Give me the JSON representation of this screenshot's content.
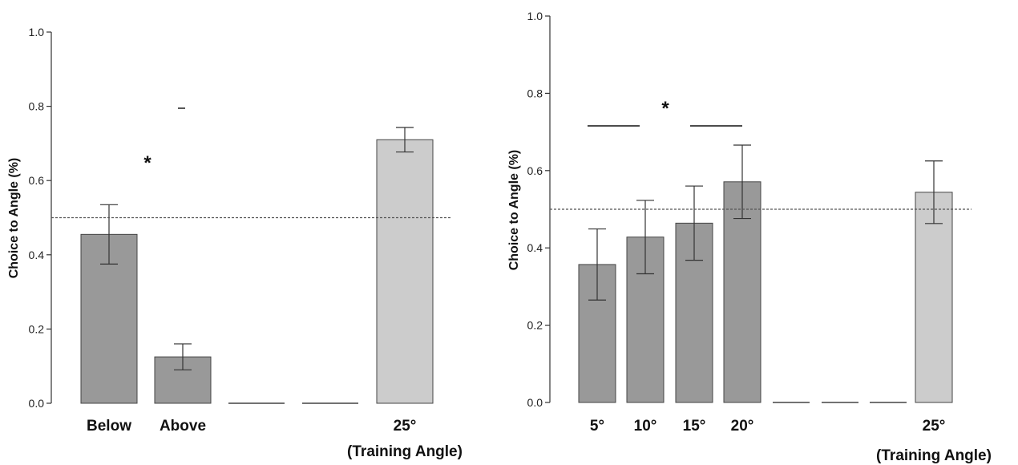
{
  "chart_data": [
    {
      "type": "bar",
      "ylabel": "Choice to Angle (%)",
      "ylim": [
        0,
        1.0
      ],
      "yticks": [
        "0.0",
        "0.2",
        "0.4",
        "0.6",
        "0.8",
        "1.0"
      ],
      "reference_line": 0.5,
      "significance_label": "*",
      "categories": [
        "Below",
        "Above",
        "",
        "",
        "25°"
      ],
      "category_sublabels": [
        "",
        "",
        "",
        "",
        "(Training Angle)"
      ],
      "values": [
        0.455,
        0.125,
        0,
        0,
        0.71
      ],
      "errors": [
        0.08,
        0.035,
        0,
        0,
        0.033
      ],
      "bar_colors": [
        "#999999",
        "#999999",
        "#999999",
        "#999999",
        "#cccccc"
      ]
    },
    {
      "type": "bar",
      "ylabel": "Choice to Angle (%)",
      "ylim": [
        0,
        1.0
      ],
      "yticks": [
        "0.0",
        "0.2",
        "0.4",
        "0.6",
        "0.8",
        "1.0"
      ],
      "reference_line": 0.5,
      "significance_label": "*",
      "categories": [
        "5°",
        "10°",
        "15°",
        "20°",
        "",
        "",
        "",
        "25°"
      ],
      "category_sublabels": [
        "",
        "",
        "",
        "",
        "",
        "",
        "",
        "(Training Angle)"
      ],
      "values": [
        0.357,
        0.428,
        0.464,
        0.571,
        0,
        0,
        0,
        0.544
      ],
      "errors": [
        0.092,
        0.095,
        0.096,
        0.095,
        0,
        0,
        0,
        0.081
      ],
      "bar_colors": [
        "#999999",
        "#999999",
        "#999999",
        "#999999",
        "#999999",
        "#999999",
        "#999999",
        "#cccccc"
      ]
    }
  ]
}
